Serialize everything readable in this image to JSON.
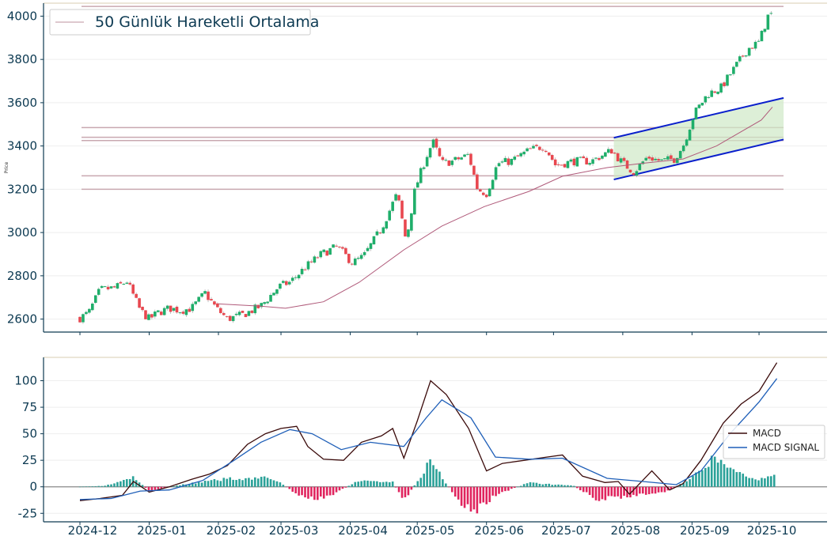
{
  "chart_data": [
    {
      "type": "candlestick",
      "ylabel": "Price",
      "ylim": [
        2540,
        4060
      ],
      "yticks": [
        2600,
        2800,
        3000,
        3200,
        3400,
        3600,
        3800,
        4000
      ],
      "legend": {
        "label": "50 Günlük Hareketli Ortalama",
        "placement": "top-left"
      },
      "colors": {
        "up": "#1fae6a",
        "down": "#e8474f",
        "ma": "#b05a7a",
        "channel": "#0a1fcc",
        "channel_fill": "#cfe8c6",
        "hline": "#c9a8b0",
        "frame": "#0d3a52"
      },
      "horizontal_levels": [
        4045,
        3485,
        3440,
        3425,
        3262,
        3200
      ],
      "channel": {
        "upper": [
          {
            "date": "2025-07-28",
            "price": 3438
          },
          {
            "date": "2025-10-12",
            "price": 3622
          }
        ],
        "lower": [
          {
            "date": "2025-07-28",
            "price": 3245
          },
          {
            "date": "2025-10-12",
            "price": 3430
          }
        ]
      },
      "close_path": [
        [
          "2024-12-01",
          2605
        ],
        [
          "2024-12-05",
          2630
        ],
        [
          "2024-12-10",
          2735
        ],
        [
          "2024-12-17",
          2745
        ],
        [
          "2024-12-22",
          2775
        ],
        [
          "2024-12-28",
          2640
        ],
        [
          "2025-01-01",
          2600
        ],
        [
          "2025-01-05",
          2630
        ],
        [
          "2025-01-10",
          2650
        ],
        [
          "2025-01-15",
          2640
        ],
        [
          "2025-01-20",
          2650
        ],
        [
          "2025-01-26",
          2720
        ],
        [
          "2025-01-31",
          2650
        ],
        [
          "2025-02-05",
          2600
        ],
        [
          "2025-02-12",
          2620
        ],
        [
          "2025-02-20",
          2660
        ],
        [
          "2025-02-28",
          2750
        ],
        [
          "2025-03-05",
          2770
        ],
        [
          "2025-03-12",
          2840
        ],
        [
          "2025-03-19",
          2900
        ],
        [
          "2025-03-26",
          2935
        ],
        [
          "2025-04-02",
          2860
        ],
        [
          "2025-04-07",
          2890
        ],
        [
          "2025-04-15",
          3020
        ],
        [
          "2025-04-22",
          3180
        ],
        [
          "2025-04-26",
          2960
        ],
        [
          "2025-04-30",
          3200
        ],
        [
          "2025-05-05",
          3350
        ],
        [
          "2025-05-08",
          3420
        ],
        [
          "2025-05-12",
          3320
        ],
        [
          "2025-05-17",
          3330
        ],
        [
          "2025-05-24",
          3360
        ],
        [
          "2025-05-28",
          3200
        ],
        [
          "2025-06-01",
          3180
        ],
        [
          "2025-06-06",
          3320
        ],
        [
          "2025-06-12",
          3330
        ],
        [
          "2025-06-20",
          3380
        ],
        [
          "2025-06-27",
          3400
        ],
        [
          "2025-07-02",
          3310
        ],
        [
          "2025-07-10",
          3330
        ],
        [
          "2025-07-18",
          3330
        ],
        [
          "2025-07-27",
          3380
        ],
        [
          "2025-08-01",
          3320
        ],
        [
          "2025-08-06",
          3280
        ],
        [
          "2025-08-12",
          3350
        ],
        [
          "2025-08-18",
          3330
        ],
        [
          "2025-08-24",
          3340
        ],
        [
          "2025-08-28",
          3400
        ],
        [
          "2025-09-02",
          3550
        ],
        [
          "2025-09-08",
          3640
        ],
        [
          "2025-09-14",
          3670
        ],
        [
          "2025-09-20",
          3760
        ],
        [
          "2025-09-26",
          3850
        ],
        [
          "2025-10-01",
          3880
        ],
        [
          "2025-10-05",
          4000
        ],
        [
          "2025-10-07",
          4010
        ]
      ],
      "ma_path": [
        [
          "2025-02-01",
          2670
        ],
        [
          "2025-02-20",
          2660
        ],
        [
          "2025-03-03",
          2650
        ],
        [
          "2025-03-20",
          2680
        ],
        [
          "2025-04-05",
          2770
        ],
        [
          "2025-04-25",
          2920
        ],
        [
          "2025-05-12",
          3030
        ],
        [
          "2025-05-31",
          3120
        ],
        [
          "2025-06-20",
          3190
        ],
        [
          "2025-07-05",
          3260
        ],
        [
          "2025-07-25",
          3300
        ],
        [
          "2025-08-10",
          3320
        ],
        [
          "2025-08-28",
          3340
        ],
        [
          "2025-09-12",
          3400
        ],
        [
          "2025-10-02",
          3520
        ],
        [
          "2025-10-07",
          3580
        ]
      ]
    },
    {
      "type": "line+bar",
      "ylim": [
        -33,
        122
      ],
      "yticks": [
        -25,
        0,
        25,
        50,
        75,
        100
      ],
      "xticks": [
        "2024-12",
        "2025-01",
        "2025-02",
        "2025-03",
        "2025-04",
        "2025-05",
        "2025-06",
        "2025-07",
        "2025-08",
        "2025-09",
        "2025-10"
      ],
      "legend_placement": "center-right",
      "colors": {
        "macd": "#3a0a0a",
        "signal": "#1f5fb8",
        "hist_pos": "#2aa198",
        "hist_neg": "#e0245e",
        "zero": "#888888"
      },
      "series": [
        {
          "name": "MACD",
          "points": [
            [
              "2024-12-01",
              -13
            ],
            [
              "2024-12-10",
              -11
            ],
            [
              "2024-12-20",
              -8
            ],
            [
              "2024-12-25",
              5
            ],
            [
              "2025-01-01",
              -5
            ],
            [
              "2025-01-10",
              0
            ],
            [
              "2025-01-20",
              7
            ],
            [
              "2025-01-28",
              12
            ],
            [
              "2025-02-05",
              20
            ],
            [
              "2025-02-14",
              40
            ],
            [
              "2025-02-22",
              50
            ],
            [
              "2025-03-01",
              55
            ],
            [
              "2025-03-08",
              57
            ],
            [
              "2025-03-13",
              38
            ],
            [
              "2025-03-20",
              26
            ],
            [
              "2025-03-29",
              25
            ],
            [
              "2025-04-06",
              42
            ],
            [
              "2025-04-15",
              48
            ],
            [
              "2025-04-20",
              55
            ],
            [
              "2025-04-25",
              27
            ],
            [
              "2025-05-01",
              62
            ],
            [
              "2025-05-07",
              100
            ],
            [
              "2025-05-14",
              87
            ],
            [
              "2025-05-24",
              55
            ],
            [
              "2025-06-01",
              15
            ],
            [
              "2025-06-08",
              22
            ],
            [
              "2025-06-18",
              25
            ],
            [
              "2025-06-28",
              28
            ],
            [
              "2025-07-05",
              30
            ],
            [
              "2025-07-14",
              10
            ],
            [
              "2025-07-24",
              4
            ],
            [
              "2025-07-30",
              5
            ],
            [
              "2025-08-04",
              -7
            ],
            [
              "2025-08-14",
              15
            ],
            [
              "2025-08-22",
              -3
            ],
            [
              "2025-08-28",
              3
            ],
            [
              "2025-09-05",
              25
            ],
            [
              "2025-09-15",
              60
            ],
            [
              "2025-09-23",
              78
            ],
            [
              "2025-10-01",
              90
            ],
            [
              "2025-10-09",
              117
            ]
          ]
        },
        {
          "name": "MACD SIGNAL",
          "points": [
            [
              "2024-12-01",
              -12
            ],
            [
              "2024-12-15",
              -11
            ],
            [
              "2024-12-28",
              -4
            ],
            [
              "2025-01-10",
              -3
            ],
            [
              "2025-01-25",
              6
            ],
            [
              "2025-02-08",
              25
            ],
            [
              "2025-02-20",
              42
            ],
            [
              "2025-03-05",
              54
            ],
            [
              "2025-03-15",
              50
            ],
            [
              "2025-03-28",
              35
            ],
            [
              "2025-04-10",
              42
            ],
            [
              "2025-04-25",
              38
            ],
            [
              "2025-05-05",
              65
            ],
            [
              "2025-05-12",
              82
            ],
            [
              "2025-05-25",
              65
            ],
            [
              "2025-06-05",
              28
            ],
            [
              "2025-06-20",
              26
            ],
            [
              "2025-07-05",
              27
            ],
            [
              "2025-07-25",
              8
            ],
            [
              "2025-08-10",
              5
            ],
            [
              "2025-08-25",
              2
            ],
            [
              "2025-09-05",
              15
            ],
            [
              "2025-09-18",
              50
            ],
            [
              "2025-10-01",
              80
            ],
            [
              "2025-10-09",
              102
            ]
          ]
        }
      ],
      "histogram": [
        [
          "2024-12-01",
          0
        ],
        [
          "2024-12-12",
          1
        ],
        [
          "2024-12-25",
          9
        ],
        [
          "2025-01-01",
          -4
        ],
        [
          "2025-01-15",
          2
        ],
        [
          "2025-02-05",
          8
        ],
        [
          "2025-02-25",
          9
        ],
        [
          "2025-03-10",
          -10
        ],
        [
          "2025-03-20",
          -12
        ],
        [
          "2025-04-05",
          6
        ],
        [
          "2025-04-20",
          5
        ],
        [
          "2025-04-25",
          -15
        ],
        [
          "2025-05-07",
          26
        ],
        [
          "2025-05-20",
          -16
        ],
        [
          "2025-05-27",
          -25
        ],
        [
          "2025-06-05",
          -8
        ],
        [
          "2025-06-20",
          4
        ],
        [
          "2025-07-10",
          1
        ],
        [
          "2025-07-20",
          -12
        ],
        [
          "2025-08-05",
          -9
        ],
        [
          "2025-08-20",
          -5
        ],
        [
          "2025-09-01",
          8
        ],
        [
          "2025-09-10",
          28
        ],
        [
          "2025-09-20",
          15
        ],
        [
          "2025-10-01",
          7
        ],
        [
          "2025-10-09",
          16
        ]
      ]
    }
  ]
}
